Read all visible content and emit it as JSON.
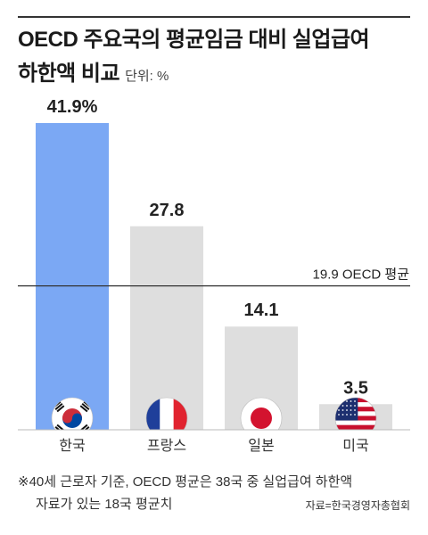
{
  "title": {
    "line1": "OECD 주요국의 평균임금 대비 실업급여",
    "line2": "하한액 비교",
    "unit": "단위: %"
  },
  "chart_data": {
    "type": "bar",
    "categories": [
      "한국",
      "프랑스",
      "일본",
      "미국"
    ],
    "values": [
      41.9,
      27.8,
      14.1,
      3.5
    ],
    "value_labels": [
      "41.9%",
      "27.8",
      "14.1",
      "3.5"
    ],
    "colors": [
      "#7ba8f4",
      "#dedede",
      "#dedede",
      "#dedede"
    ],
    "reference_line": {
      "value": 19.9,
      "label": "19.9 OECD 평균"
    },
    "flags": [
      "korea-flag-icon",
      "france-flag-icon",
      "japan-flag-icon",
      "usa-flag-icon"
    ],
    "ylim": [
      0,
      41.9
    ],
    "grid": false,
    "legend": "none"
  },
  "footnote": {
    "line1": "※40세 근로자 기준, OECD 평균은 38국 중 실업급여 하한액",
    "line2": "자료가 있는 18국 평균치"
  },
  "source": "자료=한국경영자총협회"
}
